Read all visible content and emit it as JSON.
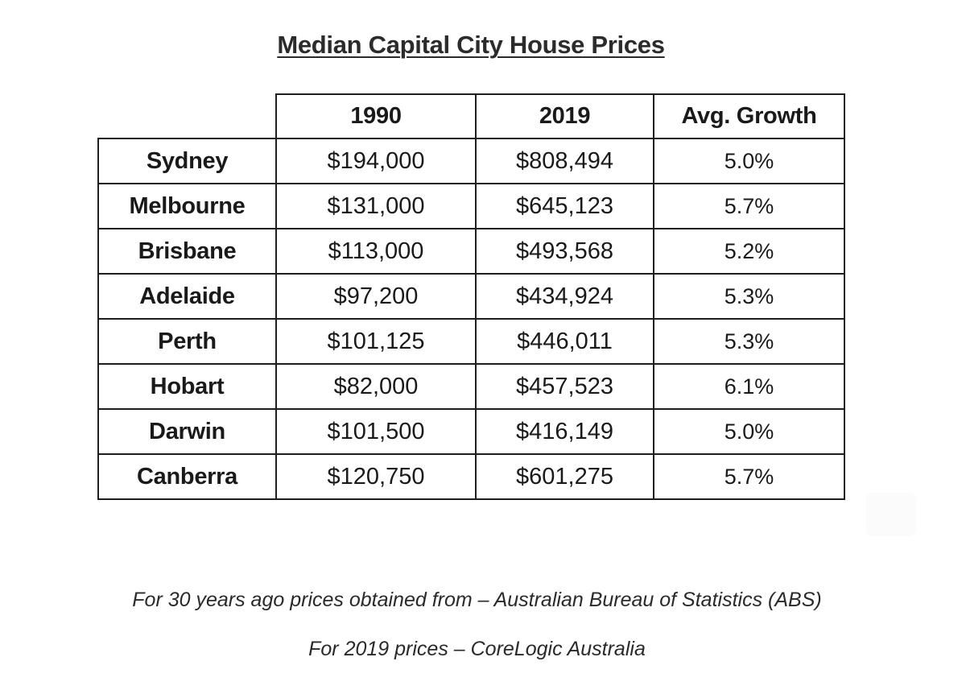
{
  "title": "Median Capital City House Prices",
  "table": {
    "headers": [
      "",
      "1990",
      "2019",
      "Avg. Growth"
    ],
    "rows": [
      {
        "city": "Sydney",
        "p1990": "$194,000",
        "p2019": "$808,494",
        "growth": "5.0%"
      },
      {
        "city": "Melbourne",
        "p1990": "$131,000",
        "p2019": "$645,123",
        "growth": "5.7%"
      },
      {
        "city": "Brisbane",
        "p1990": "$113,000",
        "p2019": "$493,568",
        "growth": "5.2%"
      },
      {
        "city": "Adelaide",
        "p1990": "$97,200",
        "p2019": "$434,924",
        "growth": "5.3%"
      },
      {
        "city": "Perth",
        "p1990": "$101,125",
        "p2019": "$446,011",
        "growth": "5.3%"
      },
      {
        "city": "Hobart",
        "p1990": "$82,000",
        "p2019": "$457,523",
        "growth": "6.1%"
      },
      {
        "city": "Darwin",
        "p1990": "$101,500",
        "p2019": "$416,149",
        "growth": "5.0%"
      },
      {
        "city": "Canberra",
        "p1990": "$120,750",
        "p2019": "$601,275",
        "growth": "5.7%"
      }
    ]
  },
  "notes": {
    "source_1990": "For 30 years ago prices obtained from – Australian Bureau of Statistics (ABS)",
    "source_2019": "For 2019 prices – CoreLogic Australia"
  }
}
